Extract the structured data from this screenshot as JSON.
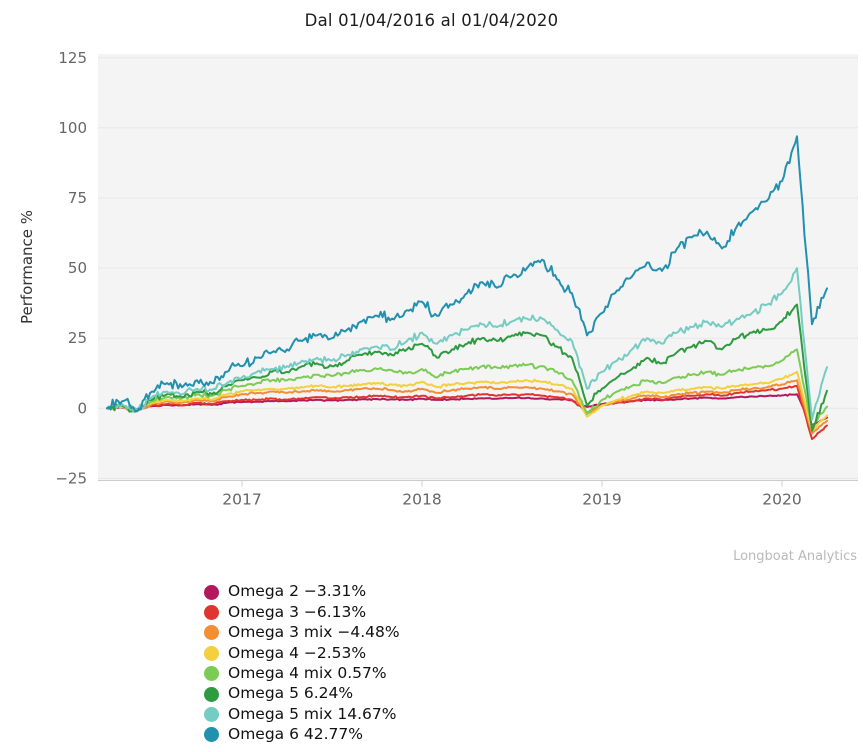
{
  "title": "Dal 01/04/2016 al 01/04/2020",
  "attribution": "Longboat Analytics",
  "chart_data": {
    "type": "line",
    "title": "Dal 01/04/2016 al 01/04/2020",
    "xlabel": "",
    "ylabel": "Performance %",
    "ylim": [
      -25,
      125
    ],
    "yticks": [
      125,
      100,
      75,
      50,
      25,
      0,
      -25
    ],
    "xticks": [
      2017,
      2018,
      2019,
      2020
    ],
    "x_start": 2016.25,
    "x_end": 2020.25,
    "x_resolution": "monthly",
    "grid": "horizontal",
    "legend_position": "bottom-left",
    "plot_bg": "#f4f4f4",
    "grid_color": "#e7e7e7",
    "axis_color": "#cccccc",
    "tick_label_color": "#666666",
    "series": [
      {
        "name": "Omega 2",
        "final_value_pct": -3.31,
        "legend_label": "Omega 2 −3.31%",
        "color": "#b2185b",
        "noise": 0.25,
        "values": [
          0,
          0.3,
          -0.3,
          0.8,
          1.2,
          1,
          1.5,
          1.2,
          2,
          2.2,
          2.4,
          2.6,
          2.5,
          2.8,
          3,
          2.8,
          3,
          3.2,
          3.3,
          3.2,
          3,
          3.4,
          3,
          3.2,
          3.4,
          3.6,
          3.4,
          3.6,
          3.7,
          3.5,
          3.2,
          2.8,
          0.5,
          1.5,
          2,
          2.5,
          3,
          2.8,
          3.2,
          3.5,
          3.8,
          3.5,
          4,
          4.2,
          4.4,
          4.6,
          5,
          -6,
          -3.31
        ]
      },
      {
        "name": "Omega 3",
        "final_value_pct": -6.13,
        "legend_label": "Omega 3 −6.13%",
        "color": "#e0352f",
        "noise": 0.35,
        "values": [
          0,
          0.5,
          -0.5,
          1,
          1.5,
          1,
          2,
          1.5,
          2.5,
          3,
          3,
          3.5,
          3,
          3.5,
          4,
          3.5,
          4,
          4,
          4.5,
          4,
          4,
          4.5,
          3.5,
          4,
          4.5,
          5,
          4.5,
          5,
          5,
          4.5,
          4,
          3,
          -1.5,
          1,
          2,
          2.5,
          3.5,
          3,
          4,
          4.5,
          5,
          4.5,
          5.5,
          6,
          6.5,
          7,
          8,
          -11,
          -6.13
        ]
      },
      {
        "name": "Omega 3 mix",
        "final_value_pct": -4.48,
        "legend_label": "Omega 3 mix −4.48%",
        "color": "#f28e34",
        "noise": 0.45,
        "values": [
          0,
          0.5,
          -1,
          1.5,
          2.5,
          2,
          3,
          2.5,
          4,
          5,
          5.5,
          6,
          5.5,
          6,
          6.5,
          6,
          6.5,
          7,
          7,
          6.5,
          6,
          7,
          5.5,
          6.5,
          7,
          7.5,
          7,
          7.5,
          7.5,
          7,
          6,
          5,
          -2,
          1,
          2.5,
          3.5,
          4.5,
          4,
          5,
          5.5,
          6,
          5.5,
          6.5,
          7,
          7.5,
          8.5,
          10,
          -9,
          -4.48
        ]
      },
      {
        "name": "Omega 4",
        "final_value_pct": -2.53,
        "legend_label": "Omega 4 −2.53%",
        "color": "#f3d03d",
        "noise": 0.5,
        "values": [
          0,
          0.5,
          -0.5,
          2,
          3,
          2.5,
          3.5,
          3,
          5,
          6,
          6.5,
          7,
          7,
          7.5,
          8,
          7.5,
          8,
          8.5,
          9,
          8.5,
          8,
          9.5,
          7.5,
          8.5,
          9,
          9.5,
          9,
          9.5,
          10,
          9.5,
          8.5,
          7,
          -3,
          1,
          3,
          4.5,
          6,
          5.5,
          6.5,
          7,
          7.5,
          7,
          8,
          8.5,
          9,
          10.5,
          13,
          -8,
          -2.53
        ]
      },
      {
        "name": "Omega 4 mix",
        "final_value_pct": 0.57,
        "legend_label": "Omega 4 mix 0.57%",
        "color": "#7bcb55",
        "noise": 0.8,
        "values": [
          0,
          1,
          -0.5,
          2.5,
          4,
          3.5,
          5,
          4.5,
          6.5,
          8,
          9,
          10,
          10,
          11,
          12,
          11.5,
          12.5,
          13.5,
          14,
          13.5,
          12.5,
          14,
          11,
          13,
          14,
          15,
          14.5,
          15,
          15.5,
          15,
          13,
          10,
          -2,
          3,
          6,
          8,
          10,
          9,
          11,
          12,
          13,
          12,
          13.5,
          14.5,
          15,
          17,
          21,
          -7,
          0.57
        ]
      },
      {
        "name": "Omega 5",
        "final_value_pct": 6.24,
        "legend_label": "Omega 5 6.24%",
        "color": "#2e9b40",
        "noise": 1.1,
        "values": [
          0,
          1,
          -1,
          3,
          5,
          4,
          6,
          5,
          8,
          10,
          11,
          13,
          13,
          15,
          16,
          15,
          17,
          19,
          20,
          19,
          21,
          23,
          18,
          21,
          23,
          25,
          24,
          26,
          27,
          26,
          22,
          18,
          1,
          7,
          11,
          14,
          18,
          16,
          20,
          22,
          24,
          21,
          25,
          27,
          28,
          31,
          37,
          -8,
          6.24
        ]
      },
      {
        "name": "Omega 5 mix",
        "final_value_pct": 14.67,
        "legend_label": "Omega 5 mix 14.67%",
        "color": "#75ccc2",
        "noise": 1.3,
        "values": [
          0,
          1.5,
          -0.5,
          4,
          6,
          5,
          7,
          6.5,
          9,
          11,
          13,
          14,
          15,
          17,
          18,
          17,
          19,
          21,
          22,
          21,
          24,
          27,
          23,
          26,
          28,
          30,
          29,
          31,
          32,
          32,
          28,
          24,
          7,
          13,
          17,
          21,
          25,
          23,
          27,
          29,
          31,
          29,
          32,
          34,
          37,
          41,
          50,
          -4,
          14.67
        ]
      },
      {
        "name": "Omega 6",
        "final_value_pct": 42.77,
        "legend_label": "Omega 6 42.77%",
        "color": "#2290af",
        "noise": 2.0,
        "values": [
          0,
          2.5,
          -1,
          6,
          9,
          7.5,
          10,
          9,
          13,
          15,
          18,
          20,
          21,
          24,
          26,
          25,
          28,
          31,
          33,
          32,
          35,
          38,
          33,
          37,
          41,
          45,
          43,
          47,
          50,
          53,
          46,
          41,
          26,
          34,
          42,
          47,
          52,
          49,
          57,
          61,
          63,
          57,
          65,
          70,
          74,
          81,
          97,
          30,
          42.77
        ]
      }
    ]
  }
}
